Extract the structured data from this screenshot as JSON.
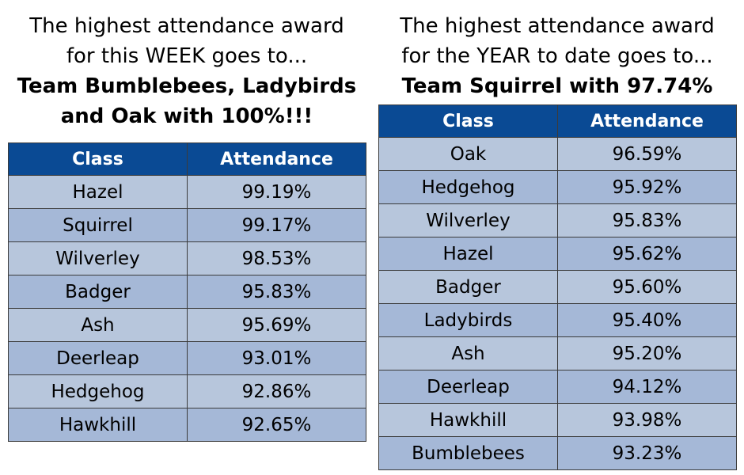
{
  "week": {
    "heading_line1": "The highest attendance award",
    "heading_line2": "for this WEEK goes to...",
    "winner_line1": "Team Bumblebees, Ladybirds",
    "winner_line2": "and Oak with 100%!!!",
    "table": {
      "headers": [
        "Class",
        "Attendance"
      ],
      "rows": [
        [
          "Hazel",
          "99.19%"
        ],
        [
          "Squirrel",
          "99.17%"
        ],
        [
          "Wilverley",
          "98.53%"
        ],
        [
          "Badger",
          "95.83%"
        ],
        [
          "Ash",
          "95.69%"
        ],
        [
          "Deerleap",
          "93.01%"
        ],
        [
          "Hedgehog",
          "92.86%"
        ],
        [
          "Hawkhill",
          "92.65%"
        ]
      ]
    }
  },
  "year": {
    "heading_line1": "The highest attendance award",
    "heading_line2": "for the YEAR to date goes to...",
    "winner_line1": "Team Squirrel with 97.74%",
    "table": {
      "headers": [
        "Class",
        "Attendance"
      ],
      "rows": [
        [
          "Oak",
          "96.59%"
        ],
        [
          "Hedgehog",
          "95.92%"
        ],
        [
          "Wilverley",
          "95.83%"
        ],
        [
          "Hazel",
          "95.62%"
        ],
        [
          "Badger",
          "95.60%"
        ],
        [
          "Ladybirds",
          "95.40%"
        ],
        [
          "Ash",
          "95.20%"
        ],
        [
          "Deerleap",
          "94.12%"
        ],
        [
          "Hawkhill",
          "93.98%"
        ],
        [
          "Bumblebees",
          "93.23%"
        ]
      ]
    }
  },
  "colors": {
    "header_bg": "#0a4a94",
    "row_light": "#b7c6dc",
    "row_dark": "#a5b8d7"
  }
}
